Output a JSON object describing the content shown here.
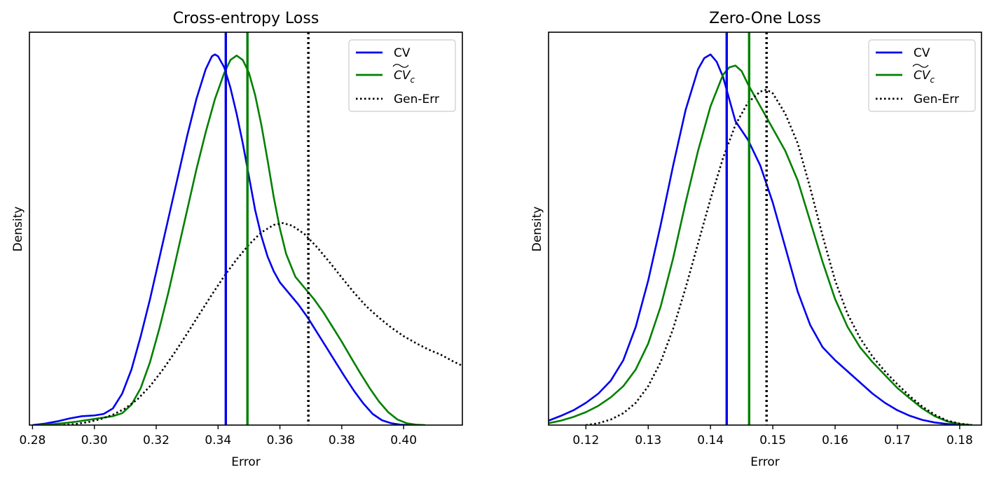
{
  "colors": {
    "cv": "#0000ee",
    "cvc": "#008000",
    "gen": "#000000"
  },
  "legend": {
    "cv": "CV",
    "cvc_main": "CV",
    "cvc_sub": "c",
    "gen": "Gen-Err"
  },
  "chart_data": [
    {
      "type": "line",
      "id": "ce",
      "title": "Cross-entropy Loss",
      "xlabel": "Error",
      "ylabel": "Density",
      "xlim": [
        0.279,
        0.419
      ],
      "ylim": [
        0,
        1.06
      ],
      "xticks": [
        0.28,
        0.3,
        0.32,
        0.34,
        0.36,
        0.38,
        0.4
      ],
      "xtick_labels": [
        "0.28",
        "0.30",
        "0.32",
        "0.34",
        "0.36",
        "0.38",
        "0.40"
      ],
      "legend_position": "top-right",
      "series": [
        {
          "name": "CV",
          "key": "cv",
          "style": "solid",
          "x": [
            0.28,
            0.284,
            0.288,
            0.292,
            0.296,
            0.3,
            0.303,
            0.306,
            0.309,
            0.312,
            0.315,
            0.318,
            0.321,
            0.324,
            0.327,
            0.33,
            0.333,
            0.336,
            0.338,
            0.339,
            0.34,
            0.342,
            0.344,
            0.346,
            0.348,
            0.35,
            0.352,
            0.354,
            0.356,
            0.358,
            0.36,
            0.363,
            0.366,
            0.369,
            0.372,
            0.375,
            0.378,
            0.381,
            0.384,
            0.387,
            0.39,
            0.393,
            0.396,
            0.399,
            0.402
          ],
          "y": [
            0.0,
            0.004,
            0.01,
            0.018,
            0.024,
            0.026,
            0.03,
            0.045,
            0.085,
            0.15,
            0.24,
            0.34,
            0.45,
            0.56,
            0.67,
            0.78,
            0.88,
            0.96,
            0.995,
            1.0,
            0.995,
            0.965,
            0.91,
            0.84,
            0.76,
            0.67,
            0.58,
            0.51,
            0.455,
            0.415,
            0.385,
            0.355,
            0.325,
            0.29,
            0.25,
            0.21,
            0.17,
            0.13,
            0.092,
            0.058,
            0.03,
            0.013,
            0.005,
            0.001,
            0.0
          ]
        },
        {
          "name": "CV~c",
          "key": "cvc",
          "style": "solid",
          "x": [
            0.282,
            0.286,
            0.29,
            0.294,
            0.298,
            0.302,
            0.306,
            0.309,
            0.312,
            0.315,
            0.318,
            0.321,
            0.324,
            0.327,
            0.33,
            0.333,
            0.336,
            0.339,
            0.342,
            0.344,
            0.346,
            0.348,
            0.35,
            0.352,
            0.354,
            0.356,
            0.358,
            0.36,
            0.362,
            0.365,
            0.368,
            0.371,
            0.374,
            0.377,
            0.38,
            0.383,
            0.386,
            0.389,
            0.392,
            0.395,
            0.398,
            0.401,
            0.404,
            0.407
          ],
          "y": [
            0.0,
            0.002,
            0.005,
            0.009,
            0.014,
            0.019,
            0.024,
            0.032,
            0.055,
            0.1,
            0.17,
            0.26,
            0.36,
            0.47,
            0.58,
            0.69,
            0.79,
            0.88,
            0.95,
            0.985,
            0.997,
            0.985,
            0.95,
            0.89,
            0.81,
            0.715,
            0.615,
            0.53,
            0.462,
            0.4,
            0.37,
            0.34,
            0.305,
            0.265,
            0.225,
            0.182,
            0.14,
            0.1,
            0.064,
            0.035,
            0.015,
            0.005,
            0.001,
            0.0
          ]
        },
        {
          "name": "Gen-Err",
          "key": "gen",
          "style": "dotted",
          "x": [
            0.29,
            0.294,
            0.298,
            0.302,
            0.306,
            0.31,
            0.314,
            0.318,
            0.322,
            0.326,
            0.33,
            0.334,
            0.338,
            0.342,
            0.346,
            0.35,
            0.354,
            0.358,
            0.361,
            0.364,
            0.368,
            0.372,
            0.376,
            0.38,
            0.384,
            0.388,
            0.392,
            0.396,
            0.4,
            0.404,
            0.408,
            0.412,
            0.416,
            0.419
          ],
          "y": [
            0.0,
            0.003,
            0.008,
            0.016,
            0.028,
            0.045,
            0.07,
            0.105,
            0.148,
            0.196,
            0.247,
            0.3,
            0.352,
            0.402,
            0.447,
            0.487,
            0.52,
            0.54,
            0.545,
            0.538,
            0.515,
            0.48,
            0.44,
            0.398,
            0.357,
            0.32,
            0.29,
            0.263,
            0.24,
            0.221,
            0.204,
            0.19,
            0.172,
            0.16
          ]
        }
      ],
      "vlines": [
        {
          "key": "cv",
          "x": 0.3425,
          "style": "solid"
        },
        {
          "key": "cvc",
          "x": 0.3495,
          "style": "solid"
        },
        {
          "key": "gen",
          "x": 0.3692,
          "style": "dotted"
        }
      ]
    },
    {
      "type": "line",
      "id": "zo",
      "title": "Zero-One Loss",
      "xlabel": "Error",
      "ylabel": "Density",
      "xlim": [
        0.114,
        0.1835
      ],
      "ylim": [
        0,
        1.06
      ],
      "xticks": [
        0.12,
        0.13,
        0.14,
        0.15,
        0.16,
        0.17,
        0.18
      ],
      "xtick_labels": [
        "0.12",
        "0.13",
        "0.14",
        "0.15",
        "0.16",
        "0.17",
        "0.18"
      ],
      "legend_position": "top-right",
      "series": [
        {
          "name": "CV",
          "key": "cv",
          "style": "solid",
          "x": [
            0.114,
            0.116,
            0.118,
            0.12,
            0.122,
            0.124,
            0.126,
            0.128,
            0.13,
            0.132,
            0.134,
            0.136,
            0.138,
            0.139,
            0.14,
            0.141,
            0.142,
            0.143,
            0.144,
            0.146,
            0.148,
            0.15,
            0.152,
            0.154,
            0.156,
            0.158,
            0.16,
            0.162,
            0.164,
            0.166,
            0.168,
            0.17,
            0.172,
            0.174,
            0.176,
            0.178,
            0.18
          ],
          "y": [
            0.012,
            0.025,
            0.04,
            0.06,
            0.085,
            0.12,
            0.175,
            0.265,
            0.39,
            0.54,
            0.7,
            0.85,
            0.96,
            0.99,
            1.0,
            0.98,
            0.94,
            0.88,
            0.82,
            0.77,
            0.7,
            0.6,
            0.48,
            0.36,
            0.27,
            0.21,
            0.175,
            0.145,
            0.115,
            0.085,
            0.06,
            0.04,
            0.025,
            0.014,
            0.007,
            0.003,
            0.001
          ]
        },
        {
          "name": "CV~c",
          "key": "cvc",
          "style": "solid",
          "x": [
            0.114,
            0.116,
            0.118,
            0.12,
            0.122,
            0.124,
            0.126,
            0.128,
            0.13,
            0.132,
            0.134,
            0.136,
            0.138,
            0.14,
            0.142,
            0.143,
            0.144,
            0.145,
            0.146,
            0.148,
            0.15,
            0.152,
            0.154,
            0.156,
            0.158,
            0.16,
            0.162,
            0.164,
            0.166,
            0.168,
            0.17,
            0.172,
            0.174,
            0.176,
            0.178,
            0.18,
            0.182
          ],
          "y": [
            0.005,
            0.012,
            0.022,
            0.035,
            0.052,
            0.075,
            0.105,
            0.15,
            0.22,
            0.32,
            0.45,
            0.6,
            0.74,
            0.86,
            0.945,
            0.965,
            0.97,
            0.955,
            0.92,
            0.86,
            0.8,
            0.74,
            0.66,
            0.55,
            0.44,
            0.34,
            0.265,
            0.21,
            0.17,
            0.135,
            0.1,
            0.072,
            0.045,
            0.024,
            0.01,
            0.003,
            0.0
          ]
        },
        {
          "name": "Gen-Err",
          "key": "gen",
          "style": "dotted",
          "x": [
            0.12,
            0.122,
            0.124,
            0.126,
            0.128,
            0.13,
            0.132,
            0.134,
            0.136,
            0.138,
            0.14,
            0.142,
            0.144,
            0.146,
            0.148,
            0.149,
            0.15,
            0.152,
            0.154,
            0.156,
            0.158,
            0.16,
            0.162,
            0.164,
            0.166,
            0.168,
            0.17,
            0.172,
            0.174,
            0.176,
            0.178,
            0.18,
            0.182
          ],
          "y": [
            0.0,
            0.005,
            0.015,
            0.032,
            0.06,
            0.105,
            0.17,
            0.26,
            0.37,
            0.49,
            0.61,
            0.72,
            0.81,
            0.87,
            0.9,
            0.905,
            0.895,
            0.84,
            0.76,
            0.64,
            0.51,
            0.39,
            0.3,
            0.235,
            0.185,
            0.145,
            0.11,
            0.078,
            0.05,
            0.028,
            0.012,
            0.004,
            0.0
          ]
        }
      ],
      "vlines": [
        {
          "key": "cv",
          "x": 0.1426,
          "style": "solid"
        },
        {
          "key": "cvc",
          "x": 0.1462,
          "style": "solid"
        },
        {
          "key": "gen",
          "x": 0.149,
          "style": "dotted"
        }
      ]
    }
  ]
}
